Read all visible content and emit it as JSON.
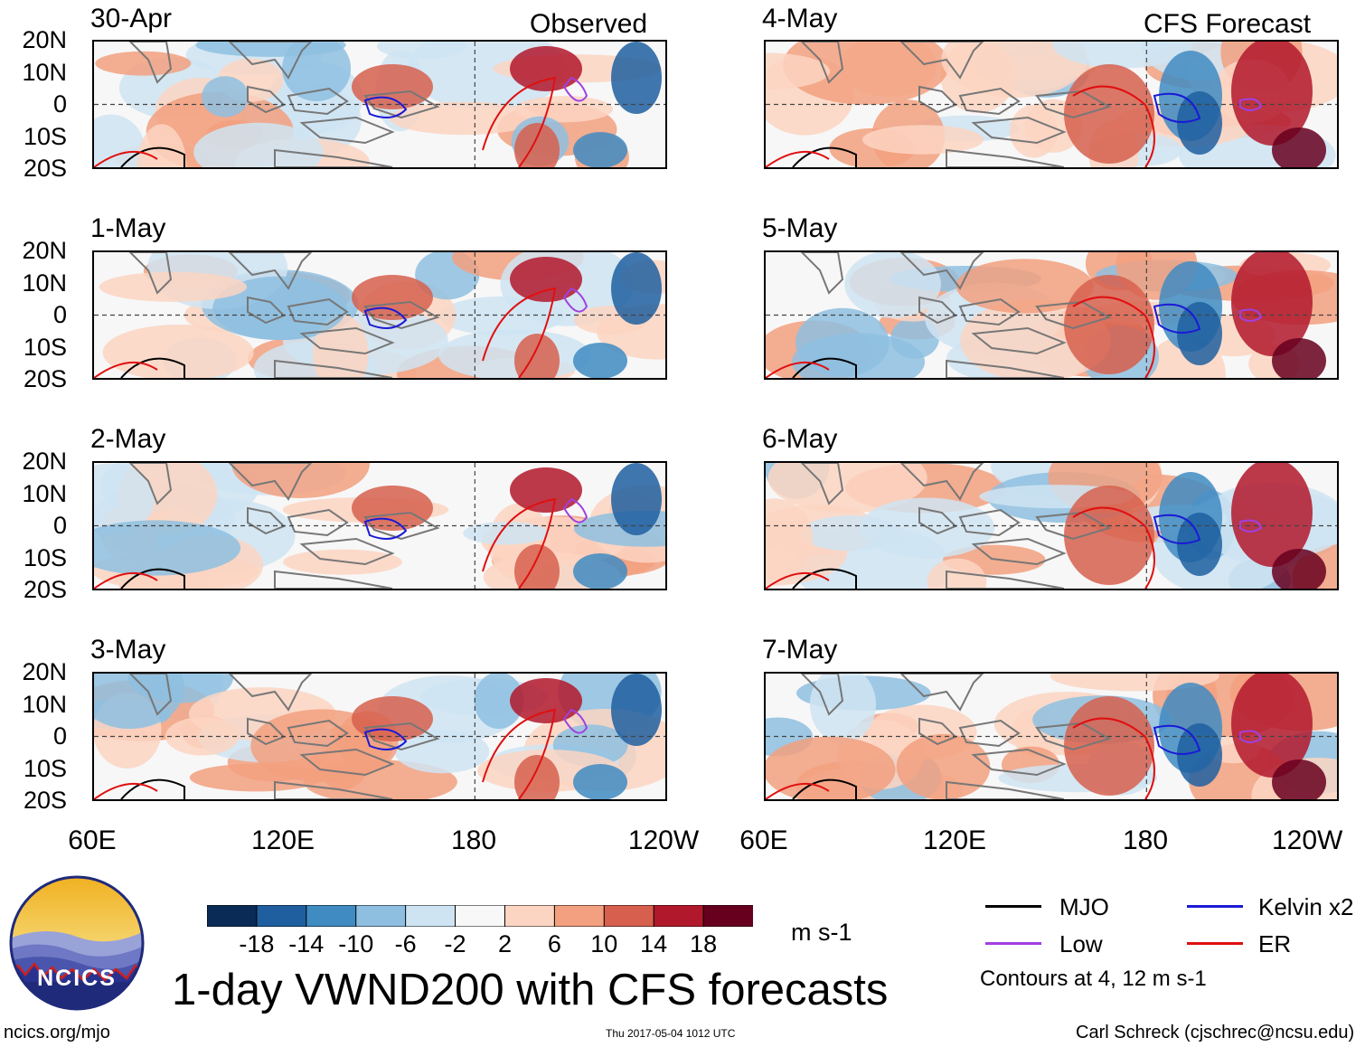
{
  "figure": {
    "title": "1-day VWND200 with CFS forecasts",
    "observed_label": "Observed",
    "forecast_label": "CFS Forecast",
    "site": "ncics.org/mjo",
    "timestamp": "Thu 2017-05-04 1012 UTC",
    "author": "Carl Schreck (cjschrec@ncsu.edu)",
    "logo_text": "NCICS"
  },
  "axes": {
    "lat_labels": [
      "20N",
      "10N",
      "0",
      "10S",
      "20S"
    ],
    "lon_labels": [
      "60E",
      "120E",
      "180",
      "120W"
    ]
  },
  "panels": {
    "left": [
      "30-Apr",
      "1-May",
      "2-May",
      "3-May"
    ],
    "right": [
      "4-May",
      "5-May",
      "6-May",
      "7-May"
    ]
  },
  "colorbar": {
    "unit": "m s-1",
    "labels": [
      "-18",
      "-14",
      "-10",
      "-6",
      "-2",
      "2",
      "6",
      "10",
      "14",
      "18"
    ],
    "colors": [
      "#0b2b57",
      "#1f5fa0",
      "#3f8bc2",
      "#8ebfe0",
      "#cfe4f2",
      "#f8f8f8",
      "#fbd5c2",
      "#f2a07f",
      "#d6604d",
      "#b2182b",
      "#67001f"
    ]
  },
  "legend": {
    "items": [
      {
        "label": "MJO",
        "color": "#000000"
      },
      {
        "label": "Kelvin x2",
        "color": "#1a1ad6"
      },
      {
        "label": "Low",
        "color": "#a040e0"
      },
      {
        "label": "ER",
        "color": "#e01010"
      }
    ],
    "note": "Contours at 4, 12 m s-1"
  }
}
